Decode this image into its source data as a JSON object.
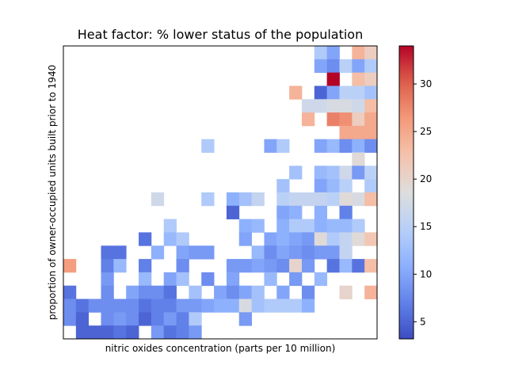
{
  "chart_data": {
    "type": "heatmap",
    "title": "Heat factor: % lower status of the population",
    "xlabel": "nitric oxides concentration (parts per 10 million)",
    "ylabel": "proportion of owner-occupied units built prior to 1940",
    "colormap": "coolwarm",
    "colorbar": {
      "min": 3.2,
      "max": 34,
      "ticks": [
        5,
        10,
        15,
        20,
        25,
        30
      ]
    },
    "grid": false,
    "cells": [
      [
        null,
        null,
        null,
        null,
        null,
        null,
        null,
        null,
        null,
        null,
        null,
        null,
        null,
        null,
        null,
        null,
        null,
        null,
        null,
        null,
        14,
        10,
        null,
        24,
        21
      ],
      [
        null,
        null,
        null,
        null,
        null,
        null,
        null,
        null,
        null,
        null,
        null,
        null,
        null,
        null,
        null,
        null,
        null,
        null,
        null,
        null,
        10,
        8,
        15,
        10,
        14
      ],
      [
        null,
        null,
        null,
        null,
        null,
        null,
        null,
        null,
        null,
        null,
        null,
        null,
        null,
        null,
        null,
        null,
        null,
        null,
        null,
        null,
        null,
        34,
        null,
        23,
        21
      ],
      [
        null,
        null,
        null,
        null,
        null,
        null,
        null,
        null,
        null,
        null,
        null,
        null,
        null,
        null,
        null,
        null,
        null,
        null,
        24,
        null,
        5,
        10,
        15,
        15,
        13
      ],
      [
        null,
        null,
        null,
        null,
        null,
        null,
        null,
        null,
        null,
        null,
        null,
        null,
        null,
        null,
        null,
        null,
        null,
        null,
        null,
        17,
        17,
        18,
        18,
        17,
        23
      ],
      [
        null,
        null,
        null,
        null,
        null,
        null,
        null,
        null,
        null,
        null,
        null,
        null,
        null,
        null,
        null,
        null,
        null,
        null,
        null,
        24,
        null,
        28,
        27,
        21,
        25
      ],
      [
        null,
        null,
        null,
        null,
        null,
        null,
        null,
        null,
        null,
        null,
        null,
        null,
        null,
        null,
        null,
        null,
        null,
        null,
        null,
        null,
        null,
        null,
        25,
        25,
        25
      ],
      [
        null,
        null,
        null,
        null,
        null,
        null,
        null,
        null,
        null,
        null,
        null,
        14,
        null,
        null,
        null,
        null,
        10,
        14,
        null,
        null,
        10,
        12,
        8,
        11,
        8
      ],
      [
        null,
        null,
        null,
        null,
        null,
        null,
        null,
        null,
        null,
        null,
        null,
        null,
        null,
        null,
        null,
        null,
        null,
        null,
        null,
        null,
        null,
        null,
        null,
        19,
        null
      ],
      [
        null,
        null,
        null,
        null,
        null,
        null,
        null,
        null,
        null,
        null,
        null,
        null,
        null,
        null,
        null,
        null,
        null,
        null,
        13,
        null,
        12,
        13,
        17,
        9,
        15
      ],
      [
        null,
        null,
        null,
        null,
        null,
        null,
        null,
        null,
        null,
        null,
        null,
        null,
        null,
        null,
        null,
        null,
        null,
        13,
        null,
        null,
        10,
        12,
        15,
        null,
        14
      ],
      [
        null,
        null,
        null,
        null,
        null,
        null,
        null,
        17,
        null,
        null,
        null,
        14,
        null,
        11,
        13,
        16,
        null,
        15,
        16,
        16,
        16,
        15,
        19,
        18,
        23
      ],
      [
        null,
        null,
        null,
        null,
        null,
        null,
        null,
        null,
        null,
        null,
        null,
        null,
        null,
        5,
        null,
        null,
        null,
        10,
        11,
        null,
        11,
        null,
        7,
        null,
        null
      ],
      [
        null,
        null,
        null,
        null,
        null,
        null,
        null,
        null,
        14,
        null,
        null,
        null,
        null,
        null,
        11,
        12,
        null,
        11,
        14,
        14,
        11,
        12,
        12,
        14,
        null
      ],
      [
        null,
        null,
        null,
        null,
        null,
        null,
        6,
        null,
        12,
        14,
        null,
        null,
        null,
        null,
        10,
        null,
        10,
        11,
        10,
        9,
        19,
        14,
        16,
        19,
        22
      ],
      [
        null,
        null,
        null,
        6,
        6,
        null,
        null,
        11,
        null,
        10,
        9,
        9,
        null,
        null,
        null,
        12,
        8,
        10,
        9,
        8,
        9,
        9,
        16,
        null,
        null
      ],
      [
        26,
        null,
        null,
        7,
        12,
        null,
        7,
        null,
        null,
        8,
        null,
        null,
        null,
        9,
        9,
        10,
        9,
        8,
        20,
        9,
        null,
        6,
        12,
        6,
        23
      ],
      [
        null,
        null,
        null,
        9,
        null,
        null,
        12,
        null,
        10,
        13,
        null,
        8,
        null,
        10,
        null,
        null,
        12,
        null,
        9,
        null,
        12,
        null,
        null,
        null,
        null
      ],
      [
        6,
        null,
        null,
        8,
        null,
        10,
        8,
        8,
        6,
        null,
        13,
        null,
        10,
        8,
        10,
        13,
        null,
        10,
        null,
        8,
        null,
        null,
        20,
        null,
        24
      ],
      [
        8,
        6,
        8,
        8,
        8,
        8,
        6,
        7,
        7,
        9,
        9,
        10,
        11,
        11,
        18,
        13,
        14,
        14,
        14,
        11,
        null,
        null,
        null,
        null,
        null
      ],
      [
        8,
        5,
        null,
        8,
        9,
        8,
        5,
        7,
        9,
        7,
        14,
        null,
        null,
        null,
        9,
        null,
        null,
        null,
        null,
        null,
        null,
        null,
        null,
        null,
        null
      ],
      [
        null,
        5,
        5,
        5,
        6,
        5,
        null,
        9,
        6,
        7,
        9,
        null,
        null,
        null,
        null,
        null,
        null,
        null,
        null,
        null,
        null,
        null,
        null,
        null,
        null
      ]
    ]
  }
}
